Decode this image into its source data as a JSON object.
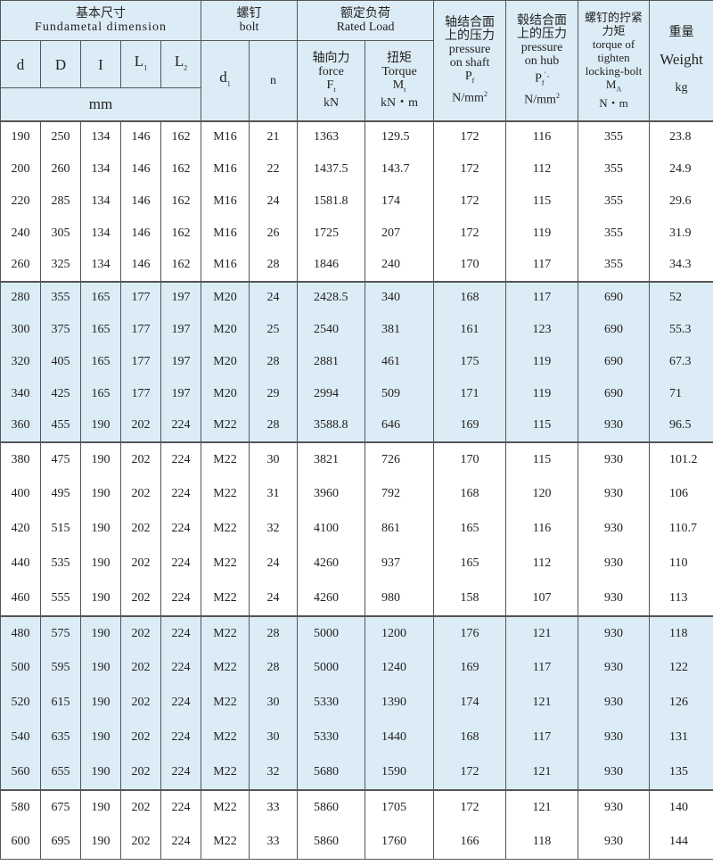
{
  "header": {
    "dimension_cn": "基本尺寸",
    "dimension_en": "Fundametal  dimension",
    "bolt_cn": "螺钉",
    "bolt_en": "bolt",
    "load_cn": "额定负荷",
    "load_en": "Rated Load",
    "d": "d",
    "D": "D",
    "I": "I",
    "L1": "L",
    "L1_sub": "1",
    "L2": "L",
    "L2_sub": "2",
    "mm": "mm",
    "d1": "d",
    "d1_sub": "1",
    "n": "n",
    "force_cn": "轴向力",
    "force_en": "force",
    "force_sym": "F",
    "force_sub": "t",
    "force_unit": "kN",
    "torque_cn": "扭矩",
    "torque_en": "Torque",
    "torque_sym": "M",
    "torque_sub": "t",
    "torque_unit": "kN・m",
    "shaft_cn": "轴结合面上的压力",
    "shaft_en1": "pressure",
    "shaft_en2": "on shaft",
    "shaft_sym": "P",
    "shaft_sub": "f",
    "shaft_unit": "N/mm",
    "shaft_sup": "2",
    "hub_cn": "毂结合面上的压力",
    "hub_en1": "pressure",
    "hub_en2": "on hub",
    "hub_sym": "P",
    "hub_sub": "f",
    "hub_mark": "'   ,",
    "hub_unit": "N/mm",
    "hub_sup": "2",
    "bolt_torque_cn": "螺钉的拧紧力矩",
    "bolt_torque_en1": "torque of",
    "bolt_torque_en2": "tighten",
    "bolt_torque_en3": "locking-bolt",
    "bolt_torque_sym": "M",
    "bolt_torque_sub": "A",
    "bolt_torque_unit": "N・m",
    "weight_cn": "重量",
    "weight_en": "Weight",
    "weight_unit": "kg"
  },
  "rows": [
    [
      "190",
      "250",
      "134",
      "146",
      "162",
      "M16",
      "21",
      "1363",
      "129.5",
      "172",
      "116",
      "355",
      "23.8"
    ],
    [
      "200",
      "260",
      "134",
      "146",
      "162",
      "M16",
      "22",
      "1437.5",
      "143.7",
      "172",
      "112",
      "355",
      "24.9"
    ],
    [
      "220",
      "285",
      "134",
      "146",
      "162",
      "M16",
      "24",
      "1581.8",
      "174",
      "172",
      "115",
      "355",
      "29.6"
    ],
    [
      "240",
      "305",
      "134",
      "146",
      "162",
      "M16",
      "26",
      "1725",
      "207",
      "172",
      "119",
      "355",
      "31.9"
    ],
    [
      "260",
      "325",
      "134",
      "146",
      "162",
      "M16",
      "28",
      "1846",
      "240",
      "170",
      "117",
      "355",
      "34.3"
    ],
    [
      "280",
      "355",
      "165",
      "177",
      "197",
      "M20",
      "24",
      "2428.5",
      "340",
      "168",
      "117",
      "690",
      "52"
    ],
    [
      "300",
      "375",
      "165",
      "177",
      "197",
      "M20",
      "25",
      "2540",
      "381",
      "161",
      "123",
      "690",
      "55.3"
    ],
    [
      "320",
      "405",
      "165",
      "177",
      "197",
      "M20",
      "28",
      "2881",
      "461",
      "175",
      "119",
      "690",
      "67.3"
    ],
    [
      "340",
      "425",
      "165",
      "177",
      "197",
      "M20",
      "29",
      "2994",
      "509",
      "171",
      "119",
      "690",
      "71"
    ],
    [
      "360",
      "455",
      "190",
      "202",
      "224",
      "M22",
      "28",
      "3588.8",
      "646",
      "169",
      "115",
      "930",
      "96.5"
    ],
    [
      "380",
      "475",
      "190",
      "202",
      "224",
      "M22",
      "30",
      "3821",
      "726",
      "170",
      "115",
      "930",
      "101.2"
    ],
    [
      "400",
      "495",
      "190",
      "202",
      "224",
      "M22",
      "31",
      "3960",
      "792",
      "168",
      "120",
      "930",
      "106"
    ],
    [
      "420",
      "515",
      "190",
      "202",
      "224",
      "M22",
      "32",
      "4100",
      "861",
      "165",
      "116",
      "930",
      "110.7"
    ],
    [
      "440",
      "535",
      "190",
      "202",
      "224",
      "M22",
      "24",
      "4260",
      "937",
      "165",
      "112",
      "930",
      "110"
    ],
    [
      "460",
      "555",
      "190",
      "202",
      "224",
      "M22",
      "24",
      "4260",
      "980",
      "158",
      "107",
      "930",
      "113"
    ],
    [
      "480",
      "575",
      "190",
      "202",
      "224",
      "M22",
      "28",
      "5000",
      "1200",
      "176",
      "121",
      "930",
      "118"
    ],
    [
      "500",
      "595",
      "190",
      "202",
      "224",
      "M22",
      "28",
      "5000",
      "1240",
      "169",
      "117",
      "930",
      "122"
    ],
    [
      "520",
      "615",
      "190",
      "202",
      "224",
      "M22",
      "30",
      "5330",
      "1390",
      "174",
      "121",
      "930",
      "126"
    ],
    [
      "540",
      "635",
      "190",
      "202",
      "224",
      "M22",
      "30",
      "5330",
      "1440",
      "168",
      "117",
      "930",
      "131"
    ],
    [
      "560",
      "655",
      "190",
      "202",
      "224",
      "M22",
      "32",
      "5680",
      "1590",
      "172",
      "121",
      "930",
      "135"
    ],
    [
      "580",
      "675",
      "190",
      "202",
      "224",
      "M22",
      "33",
      "5860",
      "1705",
      "172",
      "121",
      "930",
      "140"
    ],
    [
      "600",
      "695",
      "190",
      "202",
      "224",
      "M22",
      "33",
      "5860",
      "1760",
      "166",
      "118",
      "930",
      "144"
    ]
  ],
  "colors": {
    "band": "#dcecf6",
    "border": "#555555"
  }
}
